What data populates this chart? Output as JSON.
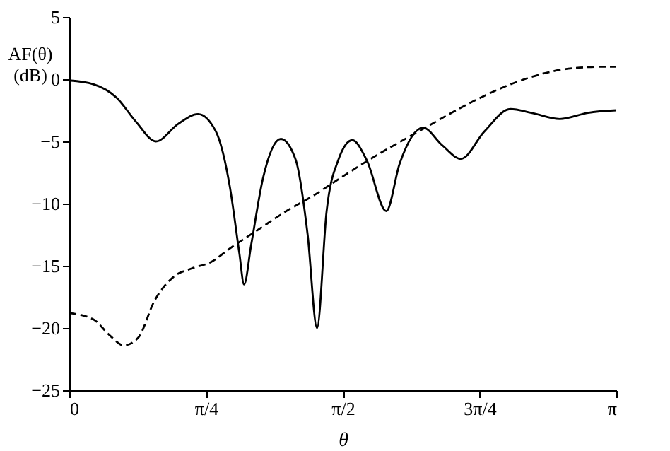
{
  "chart_data": {
    "type": "line",
    "xlabel": "θ",
    "ylabel": "AF(θ)\n(dB)",
    "xlim": [
      0,
      3.1416
    ],
    "ylim": [
      -25,
      5
    ],
    "xticks": [
      0,
      {
        "value": 0.7854,
        "label": "π/4"
      },
      {
        "value": 1.5708,
        "label": "π/2"
      },
      {
        "value": 2.3562,
        "label": "3π/4"
      },
      {
        "value": 3.1416,
        "label": "π"
      }
    ],
    "yticks": [
      -25,
      -20,
      -15,
      -10,
      -5,
      0,
      5
    ],
    "grid": false,
    "marker": "none",
    "series": [
      {
        "color": "#000000",
        "line_style": "solid",
        "x": [
          0,
          0.138,
          0.273,
          0.382,
          0.498,
          0.625,
          0.739,
          0.842,
          0.923,
          0.977,
          1.004,
          1.045,
          1.112,
          1.215,
          1.301,
          1.369,
          1.423,
          1.478,
          1.545,
          1.626,
          1.708,
          1.821,
          1.897,
          2.032,
          2.141,
          2.249,
          2.384,
          2.533,
          2.654,
          2.817,
          2.979,
          3.1416
        ],
        "values": [
          -0.1,
          -0.4,
          -1.5,
          -3.4,
          -5.0,
          -3.6,
          -2.8,
          -4.2,
          -8.7,
          -14,
          -16.5,
          -13.3,
          -8.0,
          -4.8,
          -6.5,
          -12.5,
          -20.0,
          -10.6,
          -6.5,
          -4.9,
          -6.5,
          -10.6,
          -6.8,
          -3.9,
          -5.3,
          -6.4,
          -4.2,
          -2.4,
          -2.7,
          -3.2,
          -2.7,
          -2.5
        ]
      },
      {
        "color": "#000000",
        "line_style": "dashed",
        "x": [
          0,
          0.138,
          0.233,
          0.314,
          0.395,
          0.49,
          0.598,
          0.706,
          0.814,
          0.923,
          1.085,
          1.247,
          1.409,
          1.518,
          1.708,
          2.032,
          2.303,
          2.574,
          2.844,
          3.06,
          3.1416
        ],
        "values": [
          -18.8,
          -19.3,
          -20.6,
          -21.4,
          -20.8,
          -17.8,
          -15.9,
          -15.2,
          -14.7,
          -13.6,
          -12.1,
          -10.6,
          -9.3,
          -8.3,
          -6.6,
          -4.0,
          -1.9,
          -0.2,
          0.8,
          1.0,
          1.0
        ]
      }
    ]
  }
}
